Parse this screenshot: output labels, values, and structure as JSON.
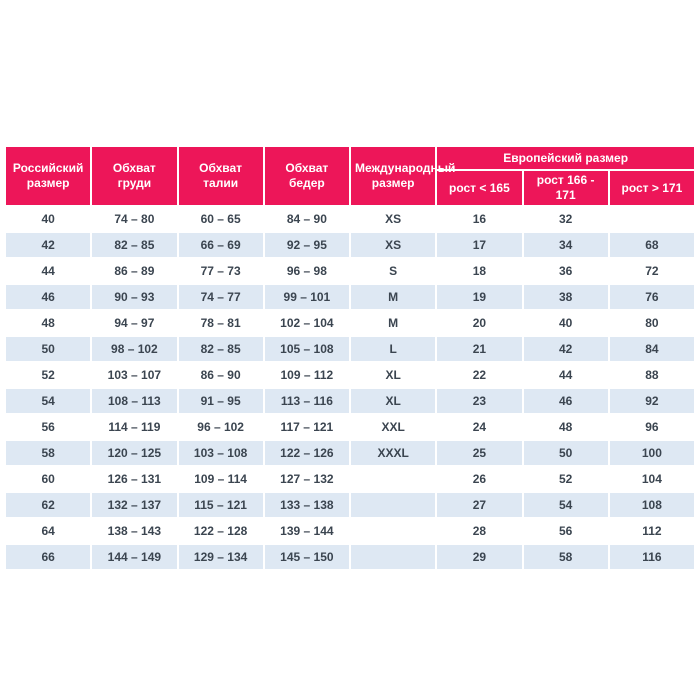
{
  "page": {
    "background": "#ffffff"
  },
  "table": {
    "colors": {
      "header_bg": "#ED1659",
      "header_text": "#ffffff",
      "alt_row_bg": "#DEE8F3",
      "body_text": "#3B4550"
    },
    "headers": {
      "russian_size": "Российский размер",
      "chest": "Обхват груди",
      "waist": "Обхват талии",
      "hips": "Обхват бедер",
      "international_size": "Международный размер",
      "european_size": "Европейский размер",
      "height_lt_165": "рост < 165",
      "height_166_171": "рост 166 - 171",
      "height_gt_171": "рост > 171"
    },
    "rows": [
      [
        "40",
        "74 – 80",
        "60 – 65",
        "84 – 90",
        "XS",
        "16",
        "32",
        ""
      ],
      [
        "42",
        "82 – 85",
        "66 – 69",
        "92 – 95",
        "XS",
        "17",
        "34",
        "68"
      ],
      [
        "44",
        "86 – 89",
        "77 – 73",
        "96 – 98",
        "S",
        "18",
        "36",
        "72"
      ],
      [
        "46",
        "90 – 93",
        "74 – 77",
        "99 – 101",
        "M",
        "19",
        "38",
        "76"
      ],
      [
        "48",
        "94 – 97",
        "78 – 81",
        "102 – 104",
        "M",
        "20",
        "40",
        "80"
      ],
      [
        "50",
        "98 – 102",
        "82 – 85",
        "105 – 108",
        "L",
        "21",
        "42",
        "84"
      ],
      [
        "52",
        "103 – 107",
        "86 – 90",
        "109 – 112",
        "XL",
        "22",
        "44",
        "88"
      ],
      [
        "54",
        "108 – 113",
        "91 – 95",
        "113 – 116",
        "XL",
        "23",
        "46",
        "92"
      ],
      [
        "56",
        "114 – 119",
        "96 – 102",
        "117 – 121",
        "XXL",
        "24",
        "48",
        "96"
      ],
      [
        "58",
        "120 – 125",
        "103 – 108",
        "122 – 126",
        "XXXL",
        "25",
        "50",
        "100"
      ],
      [
        "60",
        "126 – 131",
        "109 – 114",
        "127 – 132",
        "",
        "26",
        "52",
        "104"
      ],
      [
        "62",
        "132 – 137",
        "115 – 121",
        "133 – 138",
        "",
        "27",
        "54",
        "108"
      ],
      [
        "64",
        "138 – 143",
        "122 – 128",
        "139 – 144",
        "",
        "28",
        "56",
        "112"
      ],
      [
        "66",
        "144 – 149",
        "129 – 134",
        "145 – 150",
        "",
        "29",
        "58",
        "116"
      ]
    ]
  }
}
